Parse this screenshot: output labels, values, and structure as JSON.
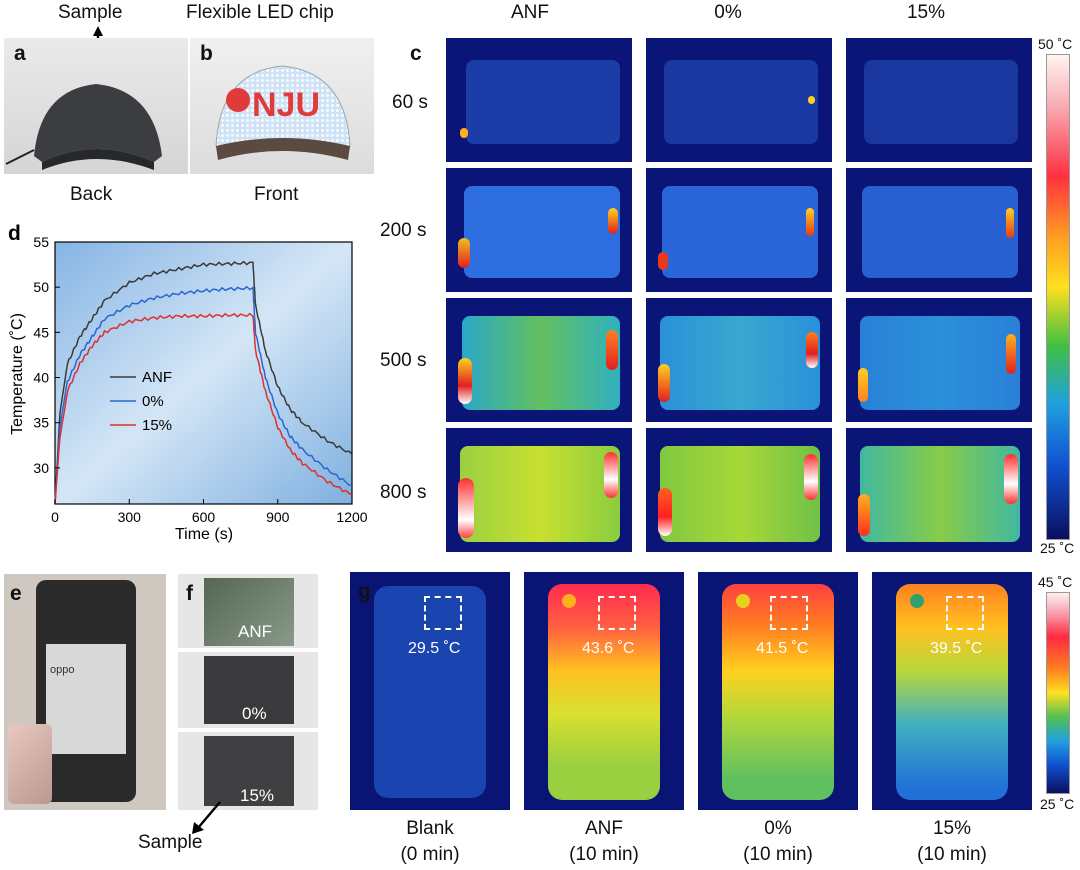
{
  "panels": {
    "a": "a",
    "b": "b",
    "c": "c",
    "d": "d",
    "e": "e",
    "f": "f",
    "g": "g"
  },
  "top": {
    "sample_label": "Sample",
    "led_label": "Flexible LED chip",
    "back_label": "Back",
    "front_label": "Front",
    "led_text": "NJU"
  },
  "thermal_grid": {
    "columns": [
      "ANF",
      "0%",
      "15%"
    ],
    "rows": [
      "60 s",
      "200 s",
      "500 s",
      "800 s"
    ],
    "colorbar_max": "50 ˚C",
    "colorbar_min": "25 ˚C"
  },
  "chart_data": {
    "type": "line",
    "title": "",
    "xlabel": "Time (s)",
    "ylabel": "Temperature (˚C)",
    "xlim": [
      0,
      1200
    ],
    "ylim": [
      26,
      55
    ],
    "xticks": [
      "0",
      "300",
      "600",
      "900",
      "1200"
    ],
    "yticks": [
      "30",
      "35",
      "40",
      "45",
      "50",
      "55"
    ],
    "legend_position": "center-left",
    "series": [
      {
        "name": "ANF",
        "color": "#3a3a3a",
        "x": [
          0,
          20,
          50,
          100,
          150,
          200,
          300,
          400,
          500,
          600,
          700,
          800,
          810,
          850,
          900,
          950,
          1000,
          1100,
          1200
        ],
        "y": [
          26,
          36,
          41.5,
          44.5,
          46.5,
          48.5,
          50.5,
          51.5,
          52,
          52.5,
          52.6,
          52.7,
          48,
          43,
          39,
          36.5,
          35,
          33,
          31.5
        ]
      },
      {
        "name": "0%",
        "color": "#2a66d0",
        "x": [
          0,
          20,
          50,
          100,
          150,
          200,
          300,
          400,
          500,
          600,
          700,
          800,
          810,
          850,
          900,
          950,
          1000,
          1100,
          1200
        ],
        "y": [
          26,
          34.5,
          39.5,
          42.5,
          44.5,
          46.5,
          48,
          48.8,
          49.3,
          49.6,
          49.8,
          49.9,
          45,
          40,
          36,
          33.5,
          32,
          29.8,
          28
        ]
      },
      {
        "name": "15%",
        "color": "#dd3030",
        "x": [
          0,
          20,
          50,
          100,
          150,
          200,
          300,
          400,
          500,
          600,
          700,
          800,
          810,
          850,
          900,
          950,
          1000,
          1100,
          1200
        ],
        "y": [
          26,
          33.5,
          38.5,
          41.5,
          43.5,
          45,
          46.2,
          46.6,
          46.8,
          46.8,
          46.9,
          46.9,
          43,
          38.5,
          34.5,
          32,
          30.5,
          28.5,
          27
        ]
      }
    ]
  },
  "phone": {
    "f_labels": [
      "ANF",
      "0%",
      "15%"
    ],
    "sample_label": "Sample"
  },
  "phone_ir": {
    "items": [
      {
        "temp": "29.5 ˚C",
        "name": "Blank",
        "time": "(0 min)"
      },
      {
        "temp": "43.6 ˚C",
        "name": "ANF",
        "time": "(10 min)"
      },
      {
        "temp": "41.5 ˚C",
        "name": "0%",
        "time": "(10 min)"
      },
      {
        "temp": "39.5 ˚C",
        "name": "15%",
        "time": "(10 min)"
      }
    ],
    "colorbar_max": "45 ˚C",
    "colorbar_min": "25 ˚C"
  }
}
